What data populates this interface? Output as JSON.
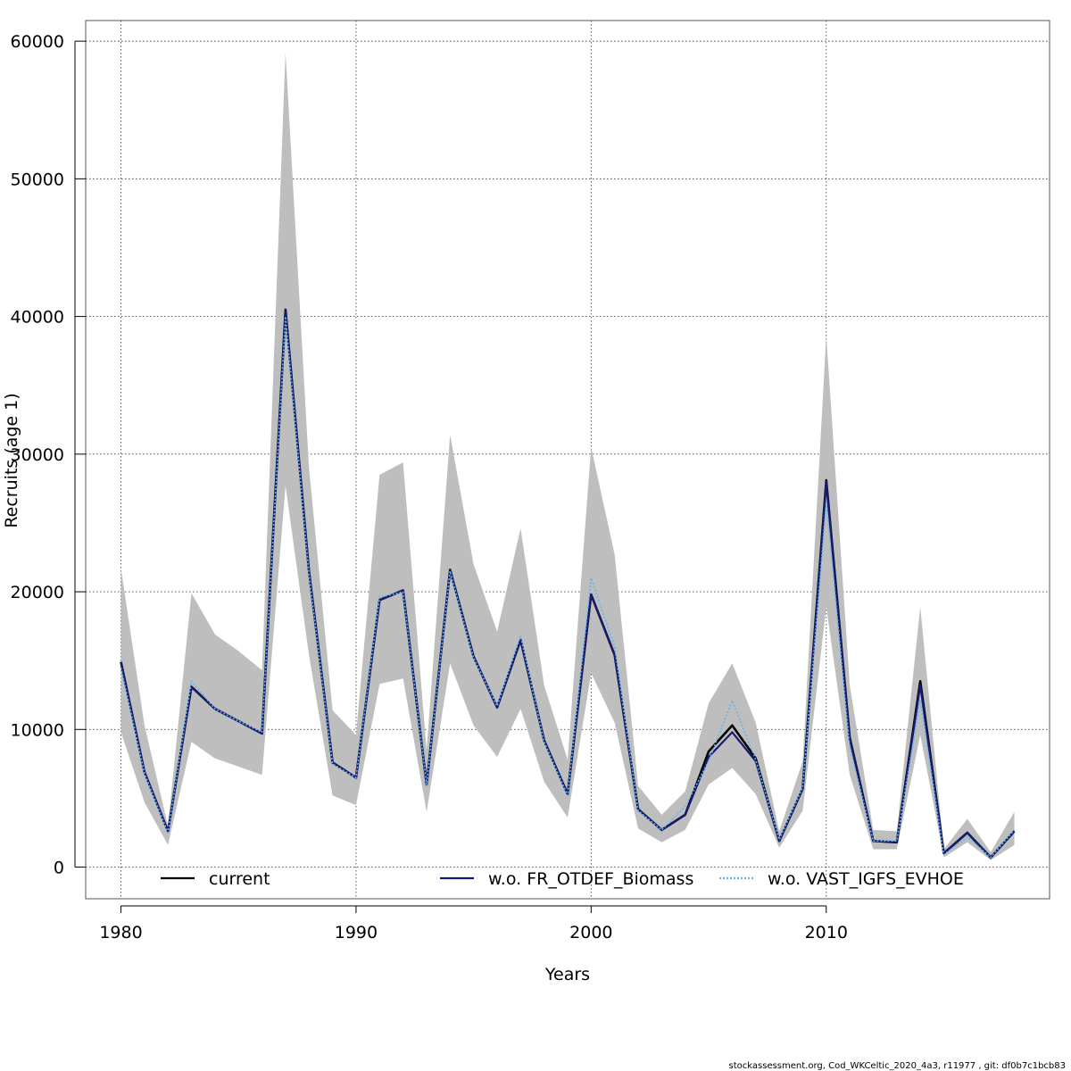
{
  "chart_data": {
    "type": "line",
    "xlabel": "Years",
    "ylabel": "Recruits (age 1)",
    "xlim": [
      1978.5,
      2019.5
    ],
    "ylim": [
      -2300,
      61500
    ],
    "x_ticks": [
      1980,
      1990,
      2000,
      2010
    ],
    "y_ticks": [
      0,
      10000,
      20000,
      30000,
      40000,
      50000,
      60000
    ],
    "grid": true,
    "legend_position": "bottom",
    "x": [
      1980,
      1981,
      1982,
      1983,
      1984,
      1985,
      1986,
      1987,
      1988,
      1989,
      1990,
      1991,
      1992,
      1993,
      1994,
      1995,
      1996,
      1997,
      1998,
      1999,
      2000,
      2001,
      2002,
      2003,
      2004,
      2005,
      2006,
      2007,
      2008,
      2009,
      2010,
      2011,
      2012,
      2013,
      2014,
      2015,
      2016,
      2017,
      2018
    ],
    "band": {
      "color": "#bebebe",
      "upper": [
        21700,
        10300,
        3000,
        19900,
        16900,
        15700,
        14300,
        59200,
        29000,
        11400,
        9600,
        28500,
        29400,
        8500,
        31400,
        22000,
        17100,
        24600,
        13200,
        7800,
        30500,
        22700,
        5900,
        3800,
        5500,
        11900,
        14800,
        10500,
        2600,
        7700,
        38600,
        13200,
        2700,
        2600,
        18900,
        1300,
        3500,
        1100,
        4000
      ],
      "lower": [
        9800,
        4700,
        1600,
        9100,
        7900,
        7300,
        6700,
        27700,
        15400,
        5200,
        4500,
        13300,
        13700,
        4000,
        14800,
        10300,
        8000,
        11500,
        6200,
        3600,
        14100,
        10500,
        2800,
        1800,
        2700,
        6000,
        7200,
        5300,
        1400,
        4100,
        18900,
        6700,
        1300,
        1300,
        9600,
        700,
        1800,
        500,
        1600
      ]
    },
    "series": [
      {
        "name": "current",
        "color": "#000000",
        "dash": "solid",
        "values": [
          14900,
          6900,
          2600,
          13100,
          11500,
          10600,
          9700,
          40500,
          21500,
          7600,
          6500,
          19400,
          20100,
          6000,
          21600,
          15300,
          11600,
          16500,
          9200,
          5300,
          19800,
          15400,
          4200,
          2700,
          3800,
          8400,
          10300,
          7900,
          1900,
          5700,
          28100,
          9400,
          1900,
          1800,
          13500,
          1000,
          2500,
          700,
          2600
        ]
      },
      {
        "name": "w.o. FR_OTDEF_Biomass",
        "color": "#191970",
        "dash": "solid",
        "values": [
          14900,
          6900,
          2600,
          13100,
          11500,
          10600,
          9700,
          40500,
          21500,
          7600,
          6500,
          19400,
          20100,
          6000,
          21600,
          15300,
          11600,
          16500,
          9200,
          5300,
          19800,
          15400,
          4200,
          2700,
          3800,
          8000,
          9800,
          7700,
          1900,
          5700,
          28000,
          9300,
          1900,
          1800,
          13200,
          1000,
          2500,
          700,
          2600
        ]
      },
      {
        "name": "w.o. VAST_IGFS_EVHOE",
        "color": "#5eb6f0",
        "dash": "dotted",
        "values": [
          14500,
          6800,
          2500,
          13500,
          11500,
          10600,
          9800,
          40000,
          21300,
          7500,
          6500,
          19600,
          20000,
          6000,
          21500,
          15200,
          11700,
          16800,
          9100,
          5200,
          21000,
          16000,
          4100,
          2700,
          4400,
          7700,
          12100,
          7800,
          2000,
          5800,
          26500,
          8700,
          1900,
          1900,
          12100,
          900,
          2200,
          700,
          2700
        ]
      }
    ],
    "footer": "stockassessment.org, Cod_WKCeltic_2020_4a3, r11977 , git: df0b7c1bcb83"
  }
}
